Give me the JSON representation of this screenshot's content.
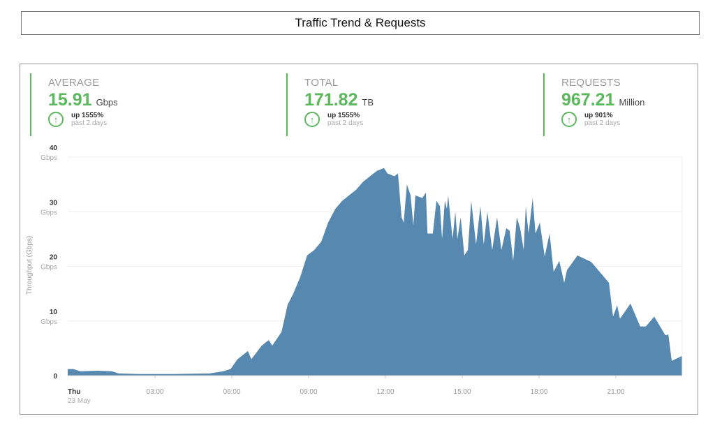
{
  "header": {
    "title": "Traffic Trend & Requests"
  },
  "stats": [
    {
      "label": "AVERAGE",
      "value": "15.91",
      "unit": "Gbps",
      "change": "up 1555%",
      "period": "past 2 days"
    },
    {
      "label": "TOTAL",
      "value": "171.82",
      "unit": "TB",
      "change": "up 1555%",
      "period": "past 2 days"
    },
    {
      "label": "REQUESTS",
      "value": "967.21",
      "unit": "Million",
      "change": "up 901%",
      "period": "past 2 days"
    }
  ],
  "colors": {
    "accent": "#5cb85c",
    "area": "#5688b0"
  },
  "chart_data": {
    "type": "area",
    "title": "",
    "ylabel": "Throughput (Gbps)",
    "xlabel": "",
    "ylim": [
      0,
      40
    ],
    "xlim": [
      -0.41,
      23.59
    ],
    "grid": true,
    "y_ticks": [
      {
        "value": 0,
        "label": "0",
        "unit": ""
      },
      {
        "value": 10,
        "label": "10",
        "unit": "Gbps"
      },
      {
        "value": 20,
        "label": "20",
        "unit": "Gbps"
      },
      {
        "value": 30,
        "label": "30",
        "unit": "Gbps"
      },
      {
        "value": 40,
        "label": "40",
        "unit": "Gbps"
      }
    ],
    "x_ticks": [
      {
        "value": 0,
        "label": "Thu",
        "sub": "23 May"
      },
      {
        "value": 3,
        "label": "03:00"
      },
      {
        "value": 6,
        "label": "06:00"
      },
      {
        "value": 9,
        "label": "09:00"
      },
      {
        "value": 12,
        "label": "12:00"
      },
      {
        "value": 15,
        "label": "15:00"
      },
      {
        "value": 18,
        "label": "18:00"
      },
      {
        "value": 21,
        "label": "21:00"
      }
    ],
    "series": [
      {
        "name": "Throughput",
        "points": [
          [
            -0.41,
            1.2
          ],
          [
            -0.19,
            1.2
          ],
          [
            0.08,
            0.8
          ],
          [
            0.76,
            0.9
          ],
          [
            1.31,
            0.8
          ],
          [
            1.58,
            0.4
          ],
          [
            2.4,
            0.3
          ],
          [
            3.76,
            0.3
          ],
          [
            5.13,
            0.4
          ],
          [
            5.67,
            0.8
          ],
          [
            5.95,
            1.2
          ],
          [
            6.22,
            3
          ],
          [
            6.63,
            4.5
          ],
          [
            6.76,
            3
          ],
          [
            7.17,
            5.5
          ],
          [
            7.44,
            6.5
          ],
          [
            7.58,
            5.5
          ],
          [
            7.94,
            8
          ],
          [
            8.18,
            13
          ],
          [
            8.4,
            15
          ],
          [
            8.67,
            18
          ],
          [
            8.94,
            22
          ],
          [
            9.22,
            23
          ],
          [
            9.49,
            24.5
          ],
          [
            9.76,
            28
          ],
          [
            10.04,
            30.5
          ],
          [
            10.31,
            32
          ],
          [
            10.58,
            33
          ],
          [
            10.85,
            34
          ],
          [
            11.13,
            35.5
          ],
          [
            11.4,
            36.5
          ],
          [
            11.67,
            37.5
          ],
          [
            11.94,
            38
          ],
          [
            12.08,
            37
          ],
          [
            12.35,
            36.5
          ],
          [
            12.49,
            37
          ],
          [
            12.63,
            29
          ],
          [
            12.71,
            28
          ],
          [
            12.84,
            35
          ],
          [
            12.98,
            33
          ],
          [
            13.09,
            27.5
          ],
          [
            13.17,
            33
          ],
          [
            13.44,
            32.5
          ],
          [
            13.58,
            33.5
          ],
          [
            13.64,
            26
          ],
          [
            13.85,
            26
          ],
          [
            13.99,
            32
          ],
          [
            14.13,
            31
          ],
          [
            14.21,
            25
          ],
          [
            14.32,
            32
          ],
          [
            14.4,
            30.5
          ],
          [
            14.45,
            33
          ],
          [
            14.62,
            25
          ],
          [
            14.73,
            30
          ],
          [
            14.81,
            25
          ],
          [
            14.94,
            29
          ],
          [
            15.08,
            22
          ],
          [
            15.22,
            23
          ],
          [
            15.35,
            32
          ],
          [
            15.54,
            24
          ],
          [
            15.71,
            31
          ],
          [
            15.84,
            24
          ],
          [
            15.98,
            30
          ],
          [
            16.17,
            23
          ],
          [
            16.36,
            29
          ],
          [
            16.53,
            23
          ],
          [
            16.72,
            27
          ],
          [
            16.85,
            26.5
          ],
          [
            16.99,
            21
          ],
          [
            17.13,
            29
          ],
          [
            17.26,
            27
          ],
          [
            17.4,
            23
          ],
          [
            17.48,
            31
          ],
          [
            17.59,
            26
          ],
          [
            17.75,
            32.5
          ],
          [
            17.86,
            26
          ],
          [
            18.03,
            28
          ],
          [
            18.22,
            21.8
          ],
          [
            18.41,
            26
          ],
          [
            18.57,
            19
          ],
          [
            18.79,
            21
          ],
          [
            18.98,
            17
          ],
          [
            19.09,
            19.3
          ],
          [
            19.5,
            22
          ],
          [
            20.04,
            20.8
          ],
          [
            20.73,
            17
          ],
          [
            20.89,
            10.8
          ],
          [
            21.05,
            12.9
          ],
          [
            21.16,
            10.4
          ],
          [
            21.57,
            13.2
          ],
          [
            21.95,
            9
          ],
          [
            22.17,
            9
          ],
          [
            22.5,
            10.8
          ],
          [
            22.93,
            7.4
          ],
          [
            23.05,
            7.5
          ],
          [
            23.18,
            2.7
          ],
          [
            23.59,
            3.6
          ]
        ]
      }
    ]
  }
}
